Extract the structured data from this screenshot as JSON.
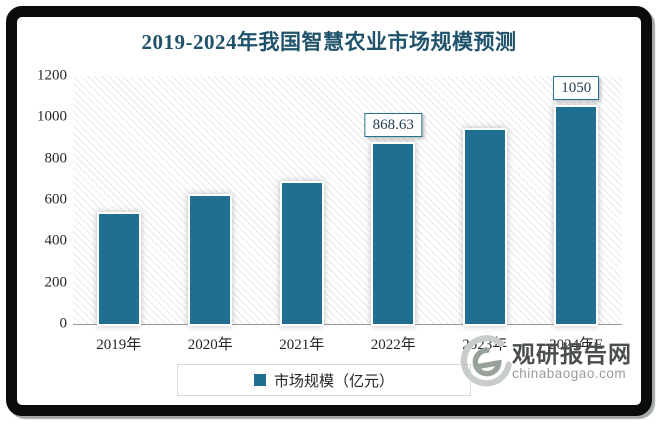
{
  "chart_data": {
    "type": "bar",
    "title": "2019-2024年我国智慧农业市场规模预测",
    "categories": [
      "2019年",
      "2020年",
      "2021年",
      "2022年",
      "2023年",
      "2024年E"
    ],
    "values": [
      530,
      620,
      680,
      868.63,
      940,
      1050
    ],
    "data_labels": [
      {
        "index": 3,
        "text": "868.63"
      },
      {
        "index": 5,
        "text": "1050"
      }
    ],
    "legend": [
      "市场规模（亿元）"
    ],
    "legend_position": "bottom",
    "xlabel": "",
    "ylabel": "",
    "ylim": [
      0,
      1200
    ],
    "yticks": [
      0,
      200,
      400,
      600,
      800,
      1000,
      1200
    ],
    "grid": false,
    "plot_background": "light-gray-diagonal-hatch"
  },
  "watermark": {
    "name": "观研报告网",
    "domain": "chinabaogao.com",
    "logo": "swirl-logo"
  },
  "colors": {
    "bar": "#206E90",
    "title": "#20536B",
    "axis_text": "#262626",
    "axis_line": "#9B9B9B",
    "label_box_border": "#25708E",
    "label_text": "#1F3B53",
    "legend_border": "#D9D9D9",
    "frame": "#0B0B0B",
    "watermark_dark": "#4A4F4C",
    "watermark_light": "#9B9B9B"
  }
}
